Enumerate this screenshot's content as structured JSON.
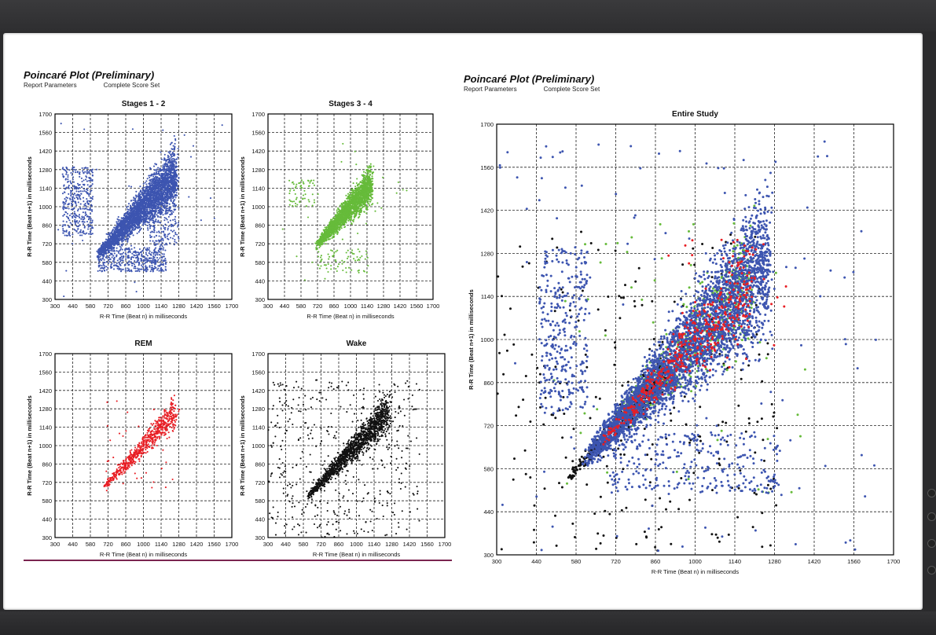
{
  "left_header": {
    "title": "Poincaré Plot (Preliminary)",
    "param_label": "Report Parameters",
    "param_value": "Complete Score Set"
  },
  "right_header": {
    "title": "Poincaré Plot (Preliminary)",
    "param_label": "Report Parameters",
    "param_value": "Complete Score Set"
  },
  "colors": {
    "stages12": "#3d55b0",
    "stages34": "#66bb3a",
    "rem": "#e81e24",
    "wake": "#111111"
  },
  "chart_data": [
    {
      "id": "stages-1-2",
      "type": "scatter",
      "title": "Stages 1 - 2",
      "xlabel": "R-R Time (Beat n) in milliseconds",
      "ylabel": "R-R Time (Beat n+1) in milliseconds",
      "xlim": [
        300,
        1700
      ],
      "ylim": [
        300,
        1700
      ],
      "xticks": [
        300,
        440,
        580,
        720,
        860,
        1000,
        1140,
        1280,
        1420,
        1560,
        1700
      ],
      "yticks": [
        300,
        440,
        580,
        720,
        860,
        1000,
        1140,
        1280,
        1420,
        1560,
        1700
      ],
      "grid": true,
      "color": "#3d55b0",
      "clusters": [
        {
          "type": "diag",
          "xmin": 650,
          "xmax": 1260,
          "spread_lo": 40,
          "spread_hi": 210,
          "n": 3200
        },
        {
          "type": "box",
          "x": [
            360,
            600
          ],
          "y": [
            780,
            1300
          ],
          "n": 380
        },
        {
          "type": "box",
          "x": [
            640,
            1180
          ],
          "y": [
            510,
            690
          ],
          "n": 450
        },
        {
          "type": "box",
          "x": [
            1050,
            1280
          ],
          "y": [
            700,
            1250
          ],
          "n": 300
        },
        {
          "type": "box",
          "x": [
            300,
            1650
          ],
          "y": [
            300,
            1650
          ],
          "n": 40
        }
      ]
    },
    {
      "id": "stages-3-4",
      "type": "scatter",
      "title": "Stages 3 - 4",
      "xlabel": "R-R Time (Beat n) in milliseconds",
      "ylabel": "R-R Time (Beat n+1) in milliseconds",
      "xlim": [
        300,
        1700
      ],
      "ylim": [
        300,
        1700
      ],
      "xticks": [
        300,
        440,
        580,
        720,
        860,
        1000,
        1140,
        1280,
        1420,
        1560,
        1700
      ],
      "yticks": [
        300,
        440,
        580,
        720,
        860,
        1000,
        1140,
        1280,
        1420,
        1560,
        1700
      ],
      "grid": true,
      "color": "#66bb3a",
      "clusters": [
        {
          "type": "diag",
          "xmin": 720,
          "xmax": 1180,
          "spread_lo": 30,
          "spread_hi": 140,
          "n": 2200
        },
        {
          "type": "box",
          "x": [
            480,
            700
          ],
          "y": [
            1000,
            1200
          ],
          "n": 60
        },
        {
          "type": "box",
          "x": [
            720,
            1150
          ],
          "y": [
            500,
            680
          ],
          "n": 70
        },
        {
          "type": "box",
          "x": [
            400,
            1500
          ],
          "y": [
            400,
            1500
          ],
          "n": 25
        }
      ]
    },
    {
      "id": "rem",
      "type": "scatter",
      "title": "REM",
      "xlabel": "R-R Time (Beat n) in milliseconds",
      "ylabel": "R-R Time (Beat n+1) in milliseconds",
      "xlim": [
        300,
        1700
      ],
      "ylim": [
        300,
        1700
      ],
      "xticks": [
        300,
        440,
        580,
        720,
        860,
        1000,
        1140,
        1280,
        1420,
        1560,
        1700
      ],
      "yticks": [
        300,
        440,
        580,
        720,
        860,
        1000,
        1140,
        1280,
        1420,
        1560,
        1700
      ],
      "grid": true,
      "color": "#e81e24",
      "clusters": [
        {
          "type": "diag",
          "xmin": 690,
          "xmax": 1260,
          "spread_lo": 20,
          "spread_hi": 120,
          "n": 650
        },
        {
          "type": "box",
          "x": [
            700,
            1300
          ],
          "y": [
            600,
            1350
          ],
          "n": 40
        }
      ]
    },
    {
      "id": "wake",
      "type": "scatter",
      "title": "Wake",
      "xlabel": "R-R Time (Beat n) in milliseconds",
      "ylabel": "R-R Time (Beat n+1) in milliseconds",
      "xlim": [
        300,
        1700
      ],
      "ylim": [
        300,
        1700
      ],
      "xticks": [
        300,
        440,
        580,
        720,
        860,
        1000,
        1140,
        1280,
        1420,
        1560,
        1700
      ],
      "yticks": [
        300,
        440,
        580,
        720,
        860,
        1000,
        1140,
        1280,
        1420,
        1560,
        1700
      ],
      "grid": true,
      "color": "#111111",
      "clusters": [
        {
          "type": "diag",
          "xmin": 620,
          "xmax": 1260,
          "spread_lo": 20,
          "spread_hi": 140,
          "n": 1500
        },
        {
          "type": "box",
          "x": [
            300,
            1500
          ],
          "y": [
            300,
            1500
          ],
          "n": 420
        }
      ]
    },
    {
      "id": "entire-study",
      "type": "scatter",
      "title": "Entire Study",
      "xlabel": "R-R Time (Beat n) in milliseconds",
      "ylabel": "R-R Time (Beat n+1) in milliseconds",
      "xlim": [
        300,
        1700
      ],
      "ylim": [
        300,
        1700
      ],
      "xticks": [
        300,
        440,
        580,
        720,
        860,
        1000,
        1140,
        1280,
        1420,
        1560,
        1700
      ],
      "yticks": [
        300,
        440,
        580,
        720,
        860,
        1000,
        1140,
        1280,
        1420,
        1560,
        1700
      ],
      "grid": true,
      "layers": [
        {
          "color": "#111111",
          "clusters": [
            {
              "type": "diag",
              "xmin": 560,
              "xmax": 900,
              "spread_lo": 15,
              "spread_hi": 60,
              "n": 400
            },
            {
              "type": "box",
              "x": [
                300,
                1300
              ],
              "y": [
                300,
                1350
              ],
              "n": 260
            }
          ]
        },
        {
          "color": "#66bb3a",
          "clusters": [
            {
              "type": "diag",
              "xmin": 720,
              "xmax": 1200,
              "spread_lo": 40,
              "spread_hi": 180,
              "n": 500
            },
            {
              "type": "box",
              "x": [
                500,
                1400
              ],
              "y": [
                500,
                1400
              ],
              "n": 50
            }
          ]
        },
        {
          "color": "#3d55b0",
          "clusters": [
            {
              "type": "diag",
              "xmin": 620,
              "xmax": 1260,
              "spread_lo": 30,
              "spread_hi": 220,
              "n": 3600
            },
            {
              "type": "box",
              "x": [
                450,
                620
              ],
              "y": [
                760,
                1300
              ],
              "n": 320
            },
            {
              "type": "box",
              "x": [
                700,
                1300
              ],
              "y": [
                500,
                700
              ],
              "n": 280
            },
            {
              "type": "box",
              "x": [
                300,
                1650
              ],
              "y": [
                300,
                1650
              ],
              "n": 120
            }
          ]
        },
        {
          "color": "#e81e24",
          "clusters": [
            {
              "type": "diag",
              "xmin": 680,
              "xmax": 1200,
              "spread_lo": 20,
              "spread_hi": 140,
              "n": 420
            },
            {
              "type": "box",
              "x": [
                900,
                1330
              ],
              "y": [
                900,
                1330
              ],
              "n": 30
            }
          ]
        }
      ]
    }
  ]
}
